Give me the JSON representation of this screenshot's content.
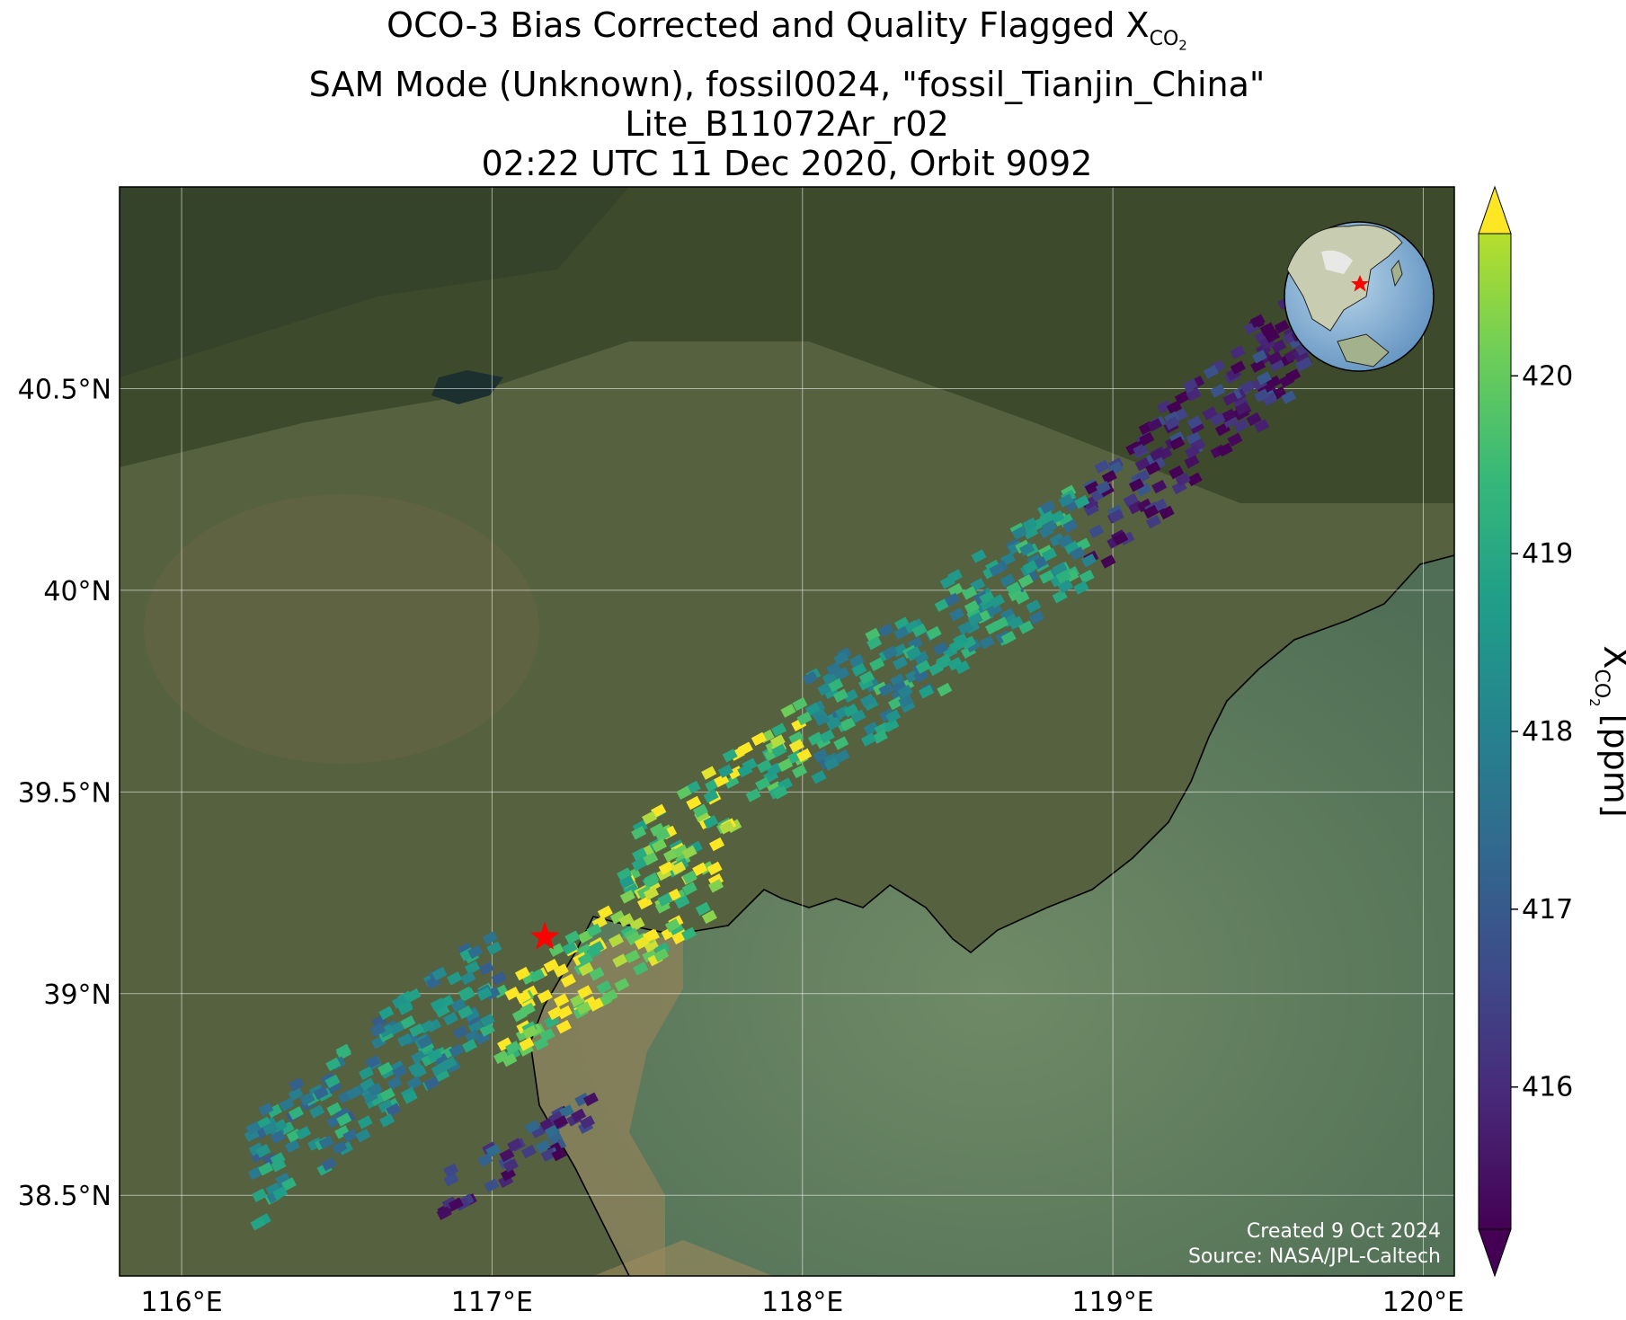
{
  "title": {
    "line1_prefix": "OCO-3 Bias Corrected and Quality Flagged X",
    "line1_sub": "CO",
    "line1_sub2": "2",
    "line2": "SAM Mode (Unknown), fossil0024, \"fossil_Tianjin_China\"",
    "line3": "Lite_B11072Ar_r02",
    "line4": "02:22 UTC 11 Dec 2020, Orbit 9092"
  },
  "map": {
    "lon_range": [
      115.8,
      120.1
    ],
    "lat_range": [
      38.3,
      41.0
    ],
    "lon_ticks": [
      116,
      117,
      118,
      119,
      120
    ],
    "lon_tick_labels": [
      "116°E",
      "117°E",
      "118°E",
      "119°E",
      "120°E"
    ],
    "lat_ticks": [
      38.5,
      39,
      39.5,
      40,
      40.5
    ],
    "lat_tick_labels": [
      "38.5°N",
      "39°N",
      "39.5°N",
      "40°N",
      "40.5°N"
    ],
    "target_site": {
      "lon": 117.17,
      "lat": 39.14,
      "marker": "red-star"
    },
    "grid": true,
    "basemap": "satellite-imagery",
    "colors": {
      "land": "#4e5a36",
      "sea": "#5e7a5e",
      "estuary": "#9c8a5e",
      "coast": "#000000",
      "target": "#ff0000"
    }
  },
  "inset": {
    "type": "globe",
    "center_region": "East Asia",
    "marker": "red-star"
  },
  "credits": {
    "line1": "Created 9 Oct 2024",
    "line2": "Source: NASA/JPL-Caltech"
  },
  "colorbar": {
    "colormap": "viridis",
    "label_main": "X",
    "label_sub": "CO",
    "label_sub2": "2",
    "label_unit": "[ppm]",
    "range": [
      415.2,
      420.8
    ],
    "ticks": [
      416,
      417,
      418,
      419,
      420
    ],
    "tick_labels": [
      "416",
      "417",
      "418",
      "419",
      "420"
    ],
    "extend": "both"
  },
  "chart_data": {
    "type": "heatmap",
    "variable": "XCO2",
    "units": "ppm",
    "swaths": [
      {
        "region": "northeast narrow strip end",
        "lon": [
          118.9,
          119.6
        ],
        "lat": [
          40.15,
          40.65
        ],
        "approx_xco2": 415.8
      },
      {
        "region": "middle strip",
        "lon": [
          118.0,
          118.9
        ],
        "lat": [
          39.65,
          40.15
        ],
        "approx_xco2": 418.5
      },
      {
        "region": "strip near city",
        "lon": [
          117.4,
          118.0
        ],
        "lat": [
          39.3,
          39.65
        ],
        "approx_xco2": 419.8
      },
      {
        "region": "urban plume core",
        "lon": [
          117.0,
          117.7
        ],
        "lat": [
          38.9,
          39.3
        ],
        "approx_xco2": 420.3
      },
      {
        "region": "southwest fan",
        "lon": [
          116.2,
          117.0
        ],
        "lat": [
          38.55,
          39.05
        ],
        "approx_xco2": 418.2
      },
      {
        "region": "southern edge",
        "lon": [
          116.8,
          117.3
        ],
        "lat": [
          38.5,
          38.7
        ],
        "approx_xco2": 416.3
      }
    ]
  }
}
